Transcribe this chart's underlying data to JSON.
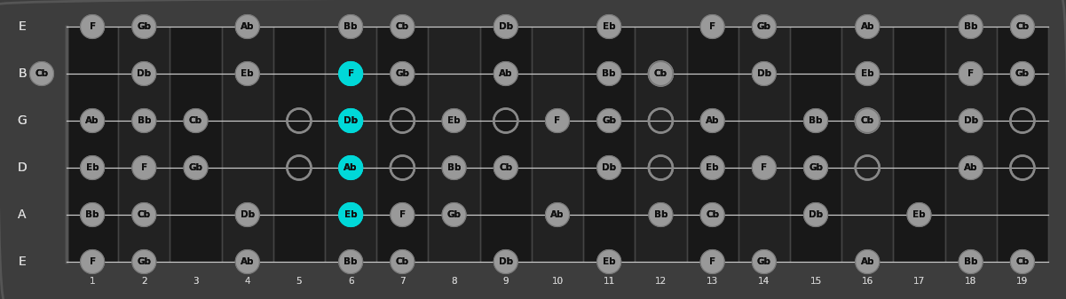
{
  "bg_color": "#3d3d3d",
  "fretboard_dark": "#111111",
  "fretboard_light": "#1e1e1e",
  "string_color": "#cccccc",
  "fret_color": "#444444",
  "nut_color": "#555555",
  "string_names": [
    "E",
    "B",
    "G",
    "D",
    "A",
    "E"
  ],
  "num_frets": 19,
  "num_strings": 6,
  "cyan_color": "#00d8d8",
  "gray_color": "#999999",
  "open_edge_color": "#888888",
  "note_text_color": "#111111",
  "string_label_color": "#dddddd",
  "fret_label_color": "#cccccc",
  "notes": {
    "E6": {
      "1": "F",
      "2": "Gb",
      "4": "Ab",
      "6": "Bb",
      "7": "Cb",
      "9": "Db",
      "11": "Eb",
      "13": "F",
      "14": "Gb",
      "16": "Ab",
      "18": "Bb",
      "19": "Cb"
    },
    "B5": {
      "0": "Cb",
      "2": "Db",
      "4": "Eb",
      "6": "F",
      "7": "Gb",
      "9": "Ab",
      "11": "Bb",
      "12": "Cb",
      "14": "Db",
      "16": "Eb",
      "18": "F",
      "19": "Gb"
    },
    "G4": {
      "1": "Ab",
      "2": "Bb",
      "3": "Cb",
      "6": "Db",
      "8": "Eb",
      "10": "F",
      "11": "Gb",
      "13": "Ab",
      "15": "Bb",
      "16": "Cb",
      "18": "Db"
    },
    "D3": {
      "1": "Eb",
      "2": "F",
      "3": "Gb",
      "6": "Ab",
      "8": "Bb",
      "9": "Cb",
      "11": "Db",
      "13": "Eb",
      "14": "F",
      "15": "Gb",
      "18": "Ab"
    },
    "A2": {
      "1": "Bb",
      "2": "Cb",
      "4": "Db",
      "6": "Eb",
      "7": "F",
      "8": "Gb",
      "10": "Ab",
      "12": "Bb",
      "13": "Cb",
      "15": "Db",
      "17": "Eb"
    },
    "E1": {
      "1": "F",
      "2": "Gb",
      "4": "Ab",
      "6": "Bb",
      "7": "Cb",
      "9": "Db",
      "11": "Eb",
      "13": "F",
      "14": "Gb",
      "16": "Ab",
      "18": "Bb",
      "19": "Cb"
    }
  },
  "open_circles": {
    "G4": [
      5,
      7,
      9,
      12,
      16,
      19
    ],
    "D3": [
      5,
      7,
      12,
      16,
      19
    ],
    "B5": [
      12
    ]
  },
  "cyan_notes": {
    "B5": 6,
    "G4": 6,
    "D3": 6,
    "A2": 6
  },
  "figwidth": 12.01,
  "figheight": 3.37,
  "dpi": 100
}
